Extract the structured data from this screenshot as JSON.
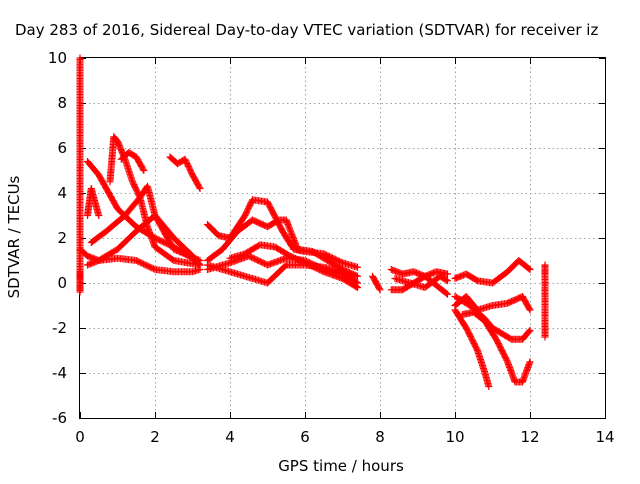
{
  "chart_data": {
    "type": "scatter",
    "title": "Day 283 of 2016, Sidereal Day-to-day VTEC variation (SDTVAR) for receiver iz",
    "xlabel": "GPS time / hours",
    "ylabel": "SDTVAR / TECUs",
    "xlim": [
      0,
      14
    ],
    "ylim": [
      -6,
      10
    ],
    "x_ticks": [
      0,
      2,
      4,
      6,
      8,
      10,
      12,
      14
    ],
    "y_ticks": [
      -6,
      -4,
      -2,
      0,
      2,
      4,
      6,
      8,
      10
    ],
    "grid": true,
    "marker": "+",
    "color": "#ff0000",
    "series": [
      {
        "x": [
          0.0,
          0.2,
          0.5,
          1.0,
          1.5,
          2.0,
          2.5,
          3.0,
          3.2
        ],
        "y": [
          1.5,
          1.2,
          1.0,
          1.1,
          1.0,
          0.6,
          0.5,
          0.5,
          0.6
        ]
      },
      {
        "x": [
          0.2,
          0.5,
          1.0,
          1.5,
          2.0,
          2.5,
          3.0,
          3.2
        ],
        "y": [
          5.4,
          4.8,
          3.3,
          2.5,
          2.0,
          1.6,
          1.1,
          0.8
        ]
      },
      {
        "x": [
          0.3,
          0.7,
          1.2,
          1.6,
          1.8,
          2.0,
          2.5,
          3.2
        ],
        "y": [
          1.8,
          2.3,
          3.0,
          3.8,
          4.3,
          3.0,
          1.5,
          1.0
        ]
      },
      {
        "x": [
          0.2,
          0.5,
          1.0,
          1.5,
          2.0,
          2.5,
          3.0,
          3.2
        ],
        "y": [
          0.8,
          1.0,
          1.5,
          2.3,
          3.0,
          2.0,
          1.2,
          0.8
        ]
      },
      {
        "x": [
          0.8,
          0.9,
          1.0,
          1.2,
          1.4,
          1.6,
          1.8,
          2.0,
          2.5,
          3.2
        ],
        "y": [
          4.5,
          6.5,
          6.3,
          5.5,
          4.5,
          3.8,
          2.5,
          1.6,
          1.0,
          0.8
        ]
      },
      {
        "x": [
          0.2,
          0.3,
          0.5
        ],
        "y": [
          3.0,
          4.2,
          3.0
        ]
      },
      {
        "x": [
          1.1,
          1.3,
          1.5,
          1.7
        ],
        "y": [
          5.5,
          5.8,
          5.6,
          5.0
        ]
      },
      {
        "x": [
          2.4,
          2.6,
          2.8,
          3.0,
          3.2
        ],
        "y": [
          5.6,
          5.3,
          5.5,
          4.8,
          4.2
        ]
      },
      {
        "x": [
          0.0,
          0.0,
          0.0,
          0.0
        ],
        "y": [
          0.5,
          -0.4,
          6.2,
          10.0
        ]
      },
      {
        "x": [
          3.4,
          3.7,
          4.0,
          4.2,
          4.4,
          4.6,
          5.0,
          5.4,
          5.7,
          6.0,
          6.5,
          7.0,
          7.4
        ],
        "y": [
          2.6,
          2.1,
          2.0,
          2.5,
          3.0,
          3.7,
          3.6,
          2.3,
          1.5,
          1.4,
          1.3,
          0.9,
          0.7
        ]
      },
      {
        "x": [
          3.4,
          3.8,
          4.2,
          4.6,
          5.0,
          5.3,
          5.5,
          5.8,
          6.2,
          6.6,
          7.0,
          7.4
        ],
        "y": [
          1.0,
          1.5,
          2.3,
          2.8,
          2.5,
          2.8,
          2.8,
          1.5,
          1.4,
          1.0,
          0.6,
          0.3
        ]
      },
      {
        "x": [
          3.4,
          3.8,
          4.2,
          4.6,
          5.0,
          5.5,
          6.0,
          6.5,
          7.0,
          7.4
        ],
        "y": [
          0.8,
          0.6,
          0.4,
          0.2,
          0.0,
          0.8,
          0.8,
          0.7,
          0.5,
          0.0
        ]
      },
      {
        "x": [
          3.4,
          4.0,
          4.5,
          5.0,
          5.5,
          6.0,
          6.5,
          7.0,
          7.4
        ],
        "y": [
          0.6,
          0.9,
          1.2,
          0.8,
          1.1,
          1.0,
          0.6,
          0.4,
          -0.2
        ]
      },
      {
        "x": [
          4.0,
          4.4,
          4.8,
          5.2,
          5.6,
          6.0,
          6.5,
          7.0,
          7.4
        ],
        "y": [
          1.1,
          1.3,
          1.7,
          1.6,
          1.2,
          0.9,
          0.5,
          0.2,
          -0.2
        ]
      },
      {
        "x": [
          7.8,
          8.0
        ],
        "y": [
          0.3,
          -0.3
        ]
      },
      {
        "x": [
          8.3,
          8.6,
          8.9,
          9.2,
          9.5,
          9.8
        ],
        "y": [
          0.6,
          0.4,
          0.5,
          0.3,
          0.5,
          0.4
        ]
      },
      {
        "x": [
          8.3,
          8.6,
          8.9,
          9.2,
          9.5,
          9.8
        ],
        "y": [
          -0.3,
          -0.3,
          0.0,
          0.3,
          -0.1,
          -0.5
        ]
      },
      {
        "x": [
          8.4,
          8.8,
          9.2,
          9.6,
          9.8
        ],
        "y": [
          0.2,
          0.0,
          -0.2,
          0.3,
          0.1
        ]
      },
      {
        "x": [
          10.0,
          10.3,
          10.6,
          11.0,
          11.4,
          11.7,
          12.0
        ],
        "y": [
          0.2,
          0.4,
          0.1,
          0.0,
          0.5,
          1.0,
          0.6
        ]
      },
      {
        "x": [
          10.0,
          10.3,
          10.6,
          11.0,
          11.4,
          11.8,
          12.0
        ],
        "y": [
          -1.0,
          -0.6,
          -1.2,
          -1.0,
          -0.9,
          -0.6,
          -1.2
        ]
      },
      {
        "x": [
          10.0,
          10.4,
          10.8,
          11.0,
          11.5,
          11.8,
          12.0
        ],
        "y": [
          -0.6,
          -1.0,
          -1.6,
          -2.0,
          -2.5,
          -2.5,
          -2.1
        ]
      },
      {
        "x": [
          10.0,
          10.3,
          10.6,
          10.8,
          10.9
        ],
        "y": [
          -1.2,
          -2.0,
          -3.0,
          -4.0,
          -4.6
        ]
      },
      {
        "x": [
          10.2,
          10.5,
          10.8,
          11.1,
          11.4,
          11.6,
          11.8,
          12.0
        ],
        "y": [
          -1.4,
          -1.3,
          -1.7,
          -2.5,
          -3.5,
          -4.4,
          -4.4,
          -3.5
        ]
      },
      {
        "x": [
          12.4,
          12.4,
          12.4,
          12.4
        ],
        "y": [
          0.8,
          0.3,
          -1.8,
          -2.4
        ]
      }
    ]
  }
}
